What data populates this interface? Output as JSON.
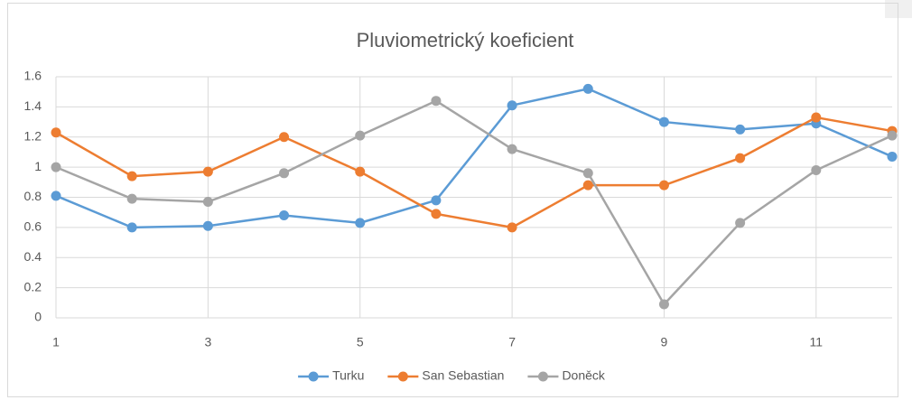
{
  "chart_data": {
    "type": "line",
    "title": "Pluviometrický koeficient",
    "x": [
      1,
      2,
      3,
      4,
      5,
      6,
      7,
      8,
      9,
      10,
      11,
      12
    ],
    "xlim": [
      1,
      12
    ],
    "xticks": [
      1,
      3,
      5,
      7,
      9,
      11
    ],
    "ylim": [
      0,
      1.6
    ],
    "yticks": [
      0,
      0.2,
      0.4,
      0.6,
      0.8,
      1,
      1.2,
      1.4,
      1.6
    ],
    "grid": true,
    "legend": "bottom",
    "series": [
      {
        "name": "Turku",
        "color": "#5b9bd5",
        "values": [
          0.81,
          0.6,
          0.61,
          0.68,
          0.63,
          0.78,
          1.41,
          1.52,
          1.3,
          1.25,
          1.29,
          1.07
        ]
      },
      {
        "name": "San Sebastian",
        "color": "#ed7d31",
        "values": [
          1.23,
          0.94,
          0.97,
          1.2,
          0.97,
          0.69,
          0.6,
          0.88,
          0.88,
          1.06,
          1.33,
          1.24
        ]
      },
      {
        "name": "Doněck",
        "color": "#a5a5a5",
        "values": [
          1.0,
          0.79,
          0.77,
          0.96,
          1.21,
          1.44,
          1.12,
          0.96,
          0.09,
          0.63,
          0.98,
          1.21
        ]
      }
    ]
  }
}
